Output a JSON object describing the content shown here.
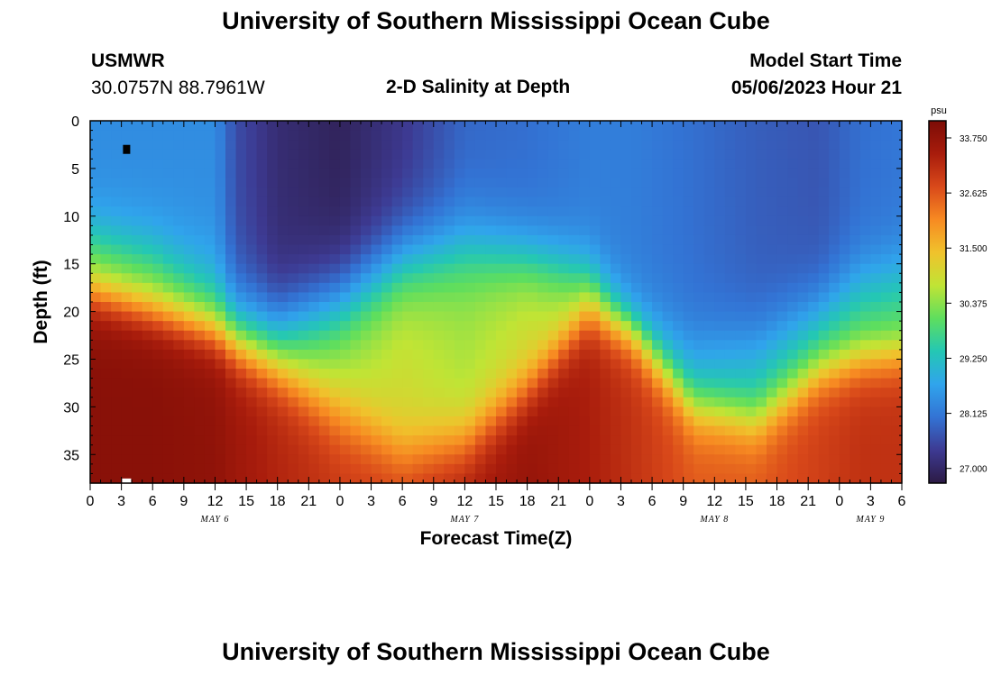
{
  "header": {
    "title": "University of Southern Mississippi Ocean Cube",
    "station": "USMWR",
    "coordinates": "30.0757N  88.7961W",
    "plot_title": "2-D Salinity at Depth",
    "model_start_label": "Model Start Time",
    "model_start_value": "05/06/2023 Hour 21"
  },
  "footer": {
    "title": "University of Southern Mississippi Ocean Cube"
  },
  "chart_data": {
    "type": "heatmap",
    "title": "2-D Salinity at Depth",
    "xlabel": "Forecast Time(Z)",
    "ylabel": "Depth (ft)",
    "x_tick_labels": [
      "0",
      "3",
      "6",
      "9",
      "12",
      "15",
      "18",
      "21",
      "0",
      "3",
      "6",
      "9",
      "12",
      "15",
      "18",
      "21",
      "0",
      "3",
      "6",
      "9",
      "12",
      "15",
      "18",
      "21",
      "0",
      "3",
      "6"
    ],
    "x_hours_range": [
      0,
      78
    ],
    "date_labels": [
      {
        "label": "MAY 6",
        "hour": 12
      },
      {
        "label": "MAY 7",
        "hour": 36
      },
      {
        "label": "MAY 8",
        "hour": 60
      },
      {
        "label": "MAY 9",
        "hour": 75
      }
    ],
    "y_ticks": [
      0,
      5,
      10,
      15,
      20,
      25,
      30,
      35
    ],
    "ylim": [
      0,
      38
    ],
    "y_inverted": true,
    "colorbar": {
      "unit": "psu",
      "ticks": [
        "33.750",
        "32.625",
        "31.500",
        "30.375",
        "29.250",
        "28.125",
        "27.000"
      ],
      "range": [
        26.7,
        34.1
      ],
      "colors": [
        "#2c1a44",
        "#3d3a92",
        "#3373d4",
        "#30a4ec",
        "#24c7b4",
        "#5ede5e",
        "#c0e435",
        "#f0c22c",
        "#f78a22",
        "#d9491a",
        "#a81c0c",
        "#7c0c06"
      ]
    },
    "salinity_profiles": {
      "hours": [
        0,
        6,
        12,
        14,
        18,
        24,
        30,
        36,
        42,
        48,
        52,
        58,
        64,
        70,
        74,
        78
      ],
      "surface_salinity": [
        28.4,
        28.4,
        28.4,
        27.6,
        27.1,
        26.9,
        27.3,
        27.9,
        28.0,
        28.2,
        28.2,
        28.0,
        27.8,
        27.7,
        28.0,
        28.1
      ],
      "thermocline_depth_ft": [
        12.0,
        14.0,
        18.0,
        20.5,
        21.5,
        19.0,
        15.0,
        13.5,
        14.5,
        16.0,
        21.0,
        24.0,
        23.5,
        20.0,
        17.0,
        16.0
      ],
      "thermocline_width_ft": [
        4.5,
        5.0,
        6.0,
        6.0,
        5.5,
        6.0,
        6.0,
        6.0,
        5.0,
        4.5,
        5.0,
        5.5,
        5.5,
        5.0,
        5.0,
        5.0
      ],
      "mid_layer_salinity": [
        30.3,
        30.4,
        30.3,
        30.3,
        30.3,
        30.6,
        30.9,
        30.6,
        30.9,
        30.6,
        29.2,
        29.1,
        29.4,
        29.8,
        29.9,
        29.9
      ],
      "deep_transition_depth_ft": [
        18.0,
        20.0,
        22.0,
        23.5,
        26.0,
        30.5,
        34.5,
        33.5,
        28.0,
        20.0,
        22.0,
        30.0,
        31.5,
        26.5,
        25.0,
        24.5
      ],
      "deep_transition_width_ft": [
        3.5,
        3.5,
        3.5,
        3.5,
        4.0,
        5.0,
        4.5,
        4.5,
        4.0,
        3.5,
        3.5,
        4.0,
        4.0,
        3.5,
        3.5,
        3.5
      ],
      "bottom_salinity": [
        33.9,
        33.9,
        33.8,
        33.6,
        33.3,
        33.0,
        32.9,
        33.4,
        33.7,
        33.4,
        33.1,
        32.6,
        32.6,
        32.9,
        33.1,
        33.1
      ]
    },
    "markers": [
      {
        "label": "max",
        "hour": 3.5,
        "depth_ft": 3.0,
        "color": "#000000"
      },
      {
        "label": "min",
        "hour": 3.5,
        "depth_ft": 37.8,
        "color": "#ffffff"
      }
    ]
  }
}
